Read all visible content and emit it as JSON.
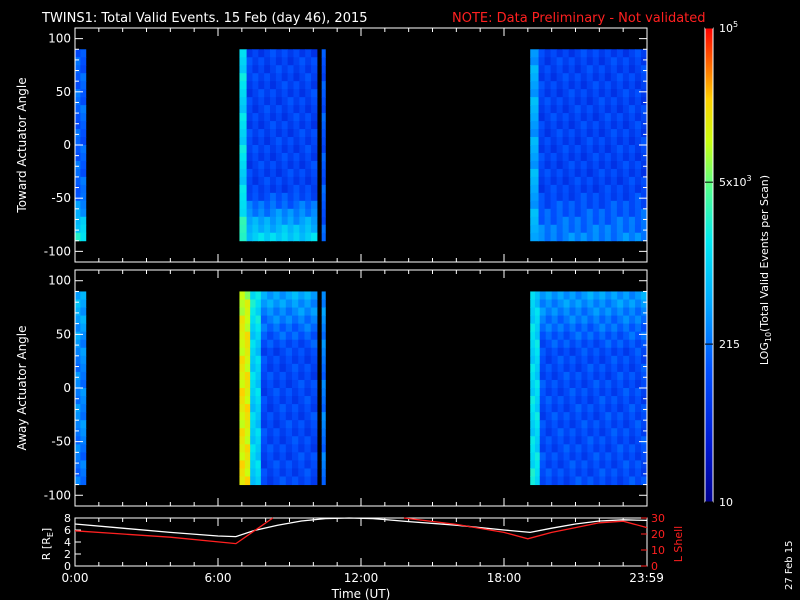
{
  "header": {
    "title": "TWINS1: Total Valid Events. 15 Feb (day  46), 2015",
    "note": "NOTE: Data Preliminary - Not validated",
    "note_color": "#ff2020"
  },
  "footer": {
    "date_stamp": "27 Feb 15"
  },
  "colors": {
    "background": "#000000",
    "axes": "#ffffff",
    "r_line": "#ffffff",
    "lshell_line": "#ff2020",
    "colormap": [
      "#00008f",
      "#0030ff",
      "#0090ff",
      "#00e0ff",
      "#40ff80",
      "#c0ff00",
      "#ffd000",
      "#ff6000",
      "#ff0000"
    ]
  },
  "colorbar": {
    "label_prefix": "LOG",
    "label_sub": "10",
    "label_suffix": "(Total Valid Events per Scan)",
    "ticks": [
      {
        "label": "10",
        "value": 10
      },
      {
        "label": "215",
        "value": 215
      },
      {
        "label": "5x10",
        "sup": "3",
        "value": 5000
      },
      {
        "label": "10",
        "sup": "5",
        "value": 100000
      }
    ],
    "range": [
      10,
      100000
    ],
    "scale": "log"
  },
  "chart_data": [
    {
      "type": "heatmap",
      "panel": "toward",
      "ylabel": "Toward Actuator Angle",
      "ylim": [
        -110,
        110
      ],
      "yticks": [
        100,
        50,
        0,
        -50,
        -100
      ],
      "xlim": [
        0,
        24
      ],
      "blocks": [
        {
          "t_start": 0.0,
          "t_end": 0.45,
          "level": 0.3,
          "low_angle_level": 0.55
        },
        {
          "t_start": 6.9,
          "t_end": 7.2,
          "level": 0.52,
          "low_angle_level": 0.6
        },
        {
          "t_start": 7.2,
          "t_end": 10.15,
          "level": 0.24,
          "low_angle_level": 0.5
        },
        {
          "t_start": 10.35,
          "t_end": 10.5,
          "level": 0.28,
          "low_angle_level": 0.3
        },
        {
          "t_start": 19.1,
          "t_end": 19.45,
          "level": 0.42,
          "low_angle_level": 0.45
        },
        {
          "t_start": 19.45,
          "t_end": 24.0,
          "level": 0.24,
          "low_angle_level": 0.36
        }
      ],
      "angle_range": [
        -90,
        90
      ]
    },
    {
      "type": "heatmap",
      "panel": "away",
      "ylabel": "Away Actuator Angle",
      "ylim": [
        -110,
        110
      ],
      "yticks": [
        100,
        50,
        0,
        -50,
        -100
      ],
      "xlim": [
        0,
        24
      ],
      "blocks": [
        {
          "t_start": 0.0,
          "t_end": 0.45,
          "level": 0.36,
          "low_angle_level": 0.32,
          "high_angle_level": 0.45
        },
        {
          "t_start": 6.9,
          "t_end": 7.35,
          "level": 0.8,
          "low_angle_level": 0.8,
          "high_angle_level": 0.75
        },
        {
          "t_start": 7.35,
          "t_end": 7.8,
          "level": 0.5,
          "low_angle_level": 0.5,
          "high_angle_level": 0.55
        },
        {
          "t_start": 7.8,
          "t_end": 10.15,
          "level": 0.25,
          "low_angle_level": 0.25,
          "high_angle_level": 0.42
        },
        {
          "t_start": 10.35,
          "t_end": 10.5,
          "level": 0.34,
          "low_angle_level": 0.34,
          "high_angle_level": 0.4
        },
        {
          "t_start": 19.1,
          "t_end": 19.5,
          "level": 0.52,
          "low_angle_level": 0.55,
          "high_angle_level": 0.5
        },
        {
          "t_start": 19.5,
          "t_end": 24.0,
          "level": 0.26,
          "low_angle_level": 0.26,
          "high_angle_level": 0.4
        }
      ],
      "angle_range": [
        -90,
        90
      ]
    },
    {
      "type": "line",
      "panel": "orbit",
      "xlabel": "Time (UT)",
      "x_tick_labels": [
        "0:00",
        "6:00",
        "12:00",
        "18:00",
        "23:59"
      ],
      "x_tick_values": [
        0,
        6,
        12,
        18,
        23.983
      ],
      "xlim": [
        0,
        24
      ],
      "left_axis": {
        "label_prefix": "R [R",
        "label_sub": "E",
        "label_suffix": "]",
        "ylim": [
          0,
          8
        ],
        "ticks": [
          0,
          2,
          4,
          6,
          8
        ]
      },
      "right_axis": {
        "label": "L Shell",
        "ylim": [
          0,
          30
        ],
        "ticks": [
          0,
          10,
          20,
          30
        ]
      },
      "series": [
        {
          "name": "R [RE]",
          "axis": "left",
          "x": [
            0,
            2,
            4,
            6,
            6.75,
            7.5,
            8.5,
            9.5,
            10.5,
            11.5,
            12.5,
            14,
            16,
            18,
            19.1,
            20,
            21,
            22,
            23,
            24
          ],
          "y": [
            7.0,
            6.3,
            5.6,
            5.0,
            4.9,
            5.9,
            6.8,
            7.5,
            7.9,
            8.0,
            7.9,
            7.4,
            6.8,
            6.0,
            5.6,
            6.3,
            7.0,
            7.5,
            7.7,
            7.6
          ]
        },
        {
          "name": "L Shell",
          "axis": "right",
          "x": [
            0,
            2,
            4,
            6.75,
            8.3,
            8.3,
            13.8,
            13.8,
            16,
            18,
            19.0,
            20,
            21,
            22,
            23,
            24
          ],
          "y": [
            22,
            20,
            18,
            14,
            30,
            null,
            null,
            30,
            26,
            21,
            17,
            21,
            24,
            27,
            28,
            24
          ]
        }
      ]
    }
  ]
}
